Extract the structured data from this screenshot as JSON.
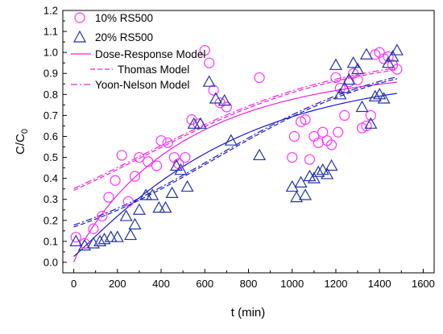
{
  "chart_data": {
    "type": "scatter",
    "title": "",
    "xlabel": "t (min)",
    "ylabel_main": "C/C",
    "ylabel_sub": "0",
    "xlim": [
      -50,
      1650
    ],
    "ylim": [
      -0.05,
      1.2
    ],
    "xticks": [
      0,
      200,
      400,
      600,
      800,
      1000,
      1200,
      1400,
      1600
    ],
    "yticks": [
      0.0,
      0.1,
      0.2,
      0.3,
      0.4,
      0.5,
      0.6,
      0.7,
      0.8,
      0.9,
      1.0,
      1.1,
      1.2
    ],
    "legend_position": "top-left",
    "colors": {
      "s10": "#ff33ff",
      "s20": "#2233aa",
      "m10": "#ee22dd",
      "m20": "#1a1acc"
    },
    "series": [
      {
        "name": "10% RS500",
        "marker": "circle",
        "color": "#ff33ff",
        "points": [
          [
            10,
            0.12
          ],
          [
            50,
            0.09
          ],
          [
            90,
            0.16
          ],
          [
            130,
            0.22
          ],
          [
            160,
            0.31
          ],
          [
            190,
            0.39
          ],
          [
            220,
            0.51
          ],
          [
            250,
            0.29
          ],
          [
            280,
            0.41
          ],
          [
            300,
            0.5
          ],
          [
            340,
            0.48
          ],
          [
            380,
            0.46
          ],
          [
            400,
            0.58
          ],
          [
            430,
            0.57
          ],
          [
            460,
            0.5
          ],
          [
            480,
            0.47
          ],
          [
            510,
            0.5
          ],
          [
            540,
            0.68
          ],
          [
            570,
            0.66
          ],
          [
            600,
            1.01
          ],
          [
            620,
            0.95
          ],
          [
            640,
            0.82
          ],
          [
            670,
            0.76
          ],
          [
            700,
            0.74
          ],
          [
            850,
            0.88
          ],
          [
            1000,
            0.5
          ],
          [
            1010,
            0.6
          ],
          [
            1040,
            0.67
          ],
          [
            1060,
            0.68
          ],
          [
            1080,
            0.49
          ],
          [
            1100,
            0.6
          ],
          [
            1120,
            0.57
          ],
          [
            1140,
            0.62
          ],
          [
            1160,
            0.58
          ],
          [
            1180,
            0.56
          ],
          [
            1200,
            0.88
          ],
          [
            1210,
            0.62
          ],
          [
            1220,
            0.83
          ],
          [
            1240,
            0.7
          ],
          [
            1260,
            0.86
          ],
          [
            1280,
            0.9
          ],
          [
            1300,
            0.87
          ],
          [
            1320,
            0.64
          ],
          [
            1340,
            0.65
          ],
          [
            1360,
            0.7
          ],
          [
            1380,
            0.99
          ],
          [
            1400,
            1.0
          ],
          [
            1420,
            0.97
          ],
          [
            1440,
            0.98
          ],
          [
            1460,
            0.94
          ],
          [
            1480,
            0.92
          ]
        ]
      },
      {
        "name": "20% RS500",
        "marker": "triangle",
        "color": "#2233aa",
        "points": [
          [
            10,
            0.1
          ],
          [
            50,
            0.08
          ],
          [
            90,
            0.09
          ],
          [
            120,
            0.1
          ],
          [
            140,
            0.11
          ],
          [
            170,
            0.12
          ],
          [
            200,
            0.12
          ],
          [
            240,
            0.22
          ],
          [
            260,
            0.13
          ],
          [
            280,
            0.18
          ],
          [
            300,
            0.25
          ],
          [
            330,
            0.32
          ],
          [
            360,
            0.32
          ],
          [
            390,
            0.26
          ],
          [
            420,
            0.26
          ],
          [
            450,
            0.33
          ],
          [
            470,
            0.46
          ],
          [
            490,
            0.44
          ],
          [
            520,
            0.36
          ],
          [
            550,
            0.66
          ],
          [
            580,
            0.66
          ],
          [
            620,
            0.86
          ],
          [
            650,
            0.78
          ],
          [
            690,
            0.77
          ],
          [
            720,
            0.58
          ],
          [
            850,
            0.51
          ],
          [
            1000,
            0.36
          ],
          [
            1020,
            0.31
          ],
          [
            1040,
            0.38
          ],
          [
            1060,
            0.32
          ],
          [
            1080,
            0.41
          ],
          [
            1100,
            0.4
          ],
          [
            1120,
            0.43
          ],
          [
            1140,
            0.44
          ],
          [
            1160,
            0.42
          ],
          [
            1180,
            0.46
          ],
          [
            1200,
            0.94
          ],
          [
            1220,
            0.8
          ],
          [
            1240,
            0.83
          ],
          [
            1260,
            0.87
          ],
          [
            1280,
            0.95
          ],
          [
            1300,
            0.92
          ],
          [
            1320,
            0.74
          ],
          [
            1340,
            0.99
          ],
          [
            1360,
            0.66
          ],
          [
            1380,
            0.79
          ],
          [
            1400,
            0.8
          ],
          [
            1420,
            0.78
          ],
          [
            1440,
            0.95
          ],
          [
            1460,
            0.98
          ],
          [
            1480,
            1.01
          ]
        ]
      }
    ],
    "models": [
      {
        "name": "Dose-Response Model",
        "style": "solid"
      },
      {
        "name": "Thomas Model",
        "style": "dash"
      },
      {
        "name": "Yoon-Nelson Model",
        "style": "dashdot"
      }
    ]
  }
}
